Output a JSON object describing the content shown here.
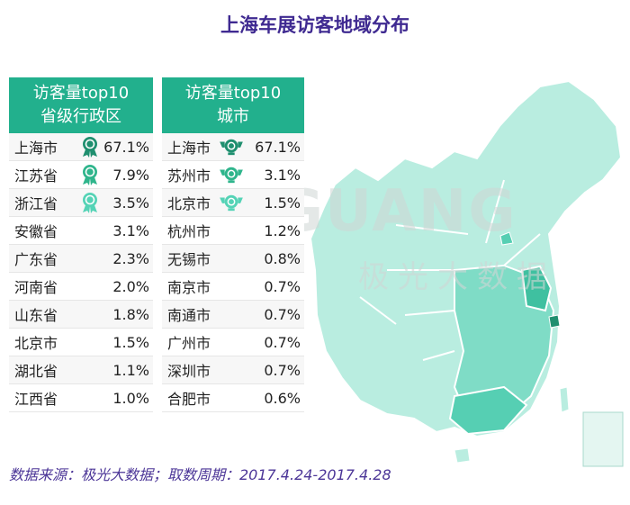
{
  "title": "上海车展访客地域分布",
  "watermark": {
    "main": "JIGUANG",
    "sub": "极光大数据"
  },
  "province_table": {
    "header_line1": "访客量top10",
    "header_line2": "省级行政区",
    "rows": [
      {
        "name": "上海市",
        "pct": "67.1%"
      },
      {
        "name": "江苏省",
        "pct": "7.9%"
      },
      {
        "name": "浙江省",
        "pct": "3.5%"
      },
      {
        "name": "安徽省",
        "pct": "3.1%"
      },
      {
        "name": "广东省",
        "pct": "2.3%"
      },
      {
        "name": "河南省",
        "pct": "2.0%"
      },
      {
        "name": "山东省",
        "pct": "1.8%"
      },
      {
        "name": "北京市",
        "pct": "1.5%"
      },
      {
        "name": "湖北省",
        "pct": "1.1%"
      },
      {
        "name": "江西省",
        "pct": "1.0%"
      }
    ]
  },
  "city_table": {
    "header_line1": "访客量top10",
    "header_line2": "城市",
    "rows": [
      {
        "name": "上海市",
        "pct": "67.1%"
      },
      {
        "name": "苏州市",
        "pct": "3.1%"
      },
      {
        "name": "北京市",
        "pct": "1.5%"
      },
      {
        "name": "杭州市",
        "pct": "1.2%"
      },
      {
        "name": "无锡市",
        "pct": "0.8%"
      },
      {
        "name": "南京市",
        "pct": "0.7%"
      },
      {
        "name": "南通市",
        "pct": "0.7%"
      },
      {
        "name": "广州市",
        "pct": "0.7%"
      },
      {
        "name": "深圳市",
        "pct": "0.7%"
      },
      {
        "name": "合肥市",
        "pct": "0.6%"
      }
    ]
  },
  "medal_colors": [
    "#1f8f6f",
    "#2fb58c",
    "#55d3b6"
  ],
  "source": "数据来源：极光大数据；取数周期：2017.4.24-2017.4.28"
}
